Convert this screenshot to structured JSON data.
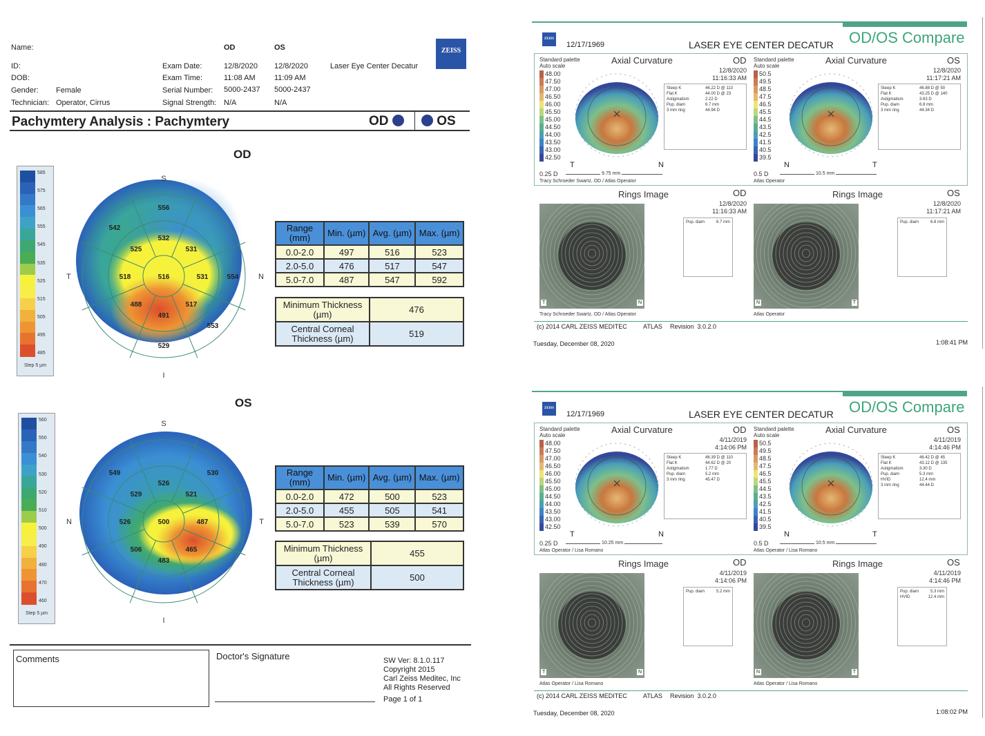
{
  "pachymetry_report": {
    "header": {
      "labels": {
        "name": "Name:",
        "id": "ID:",
        "dob": "DOB:",
        "gender": "Gender:",
        "technician": "Technician:"
      },
      "values": {
        "gender": "Female",
        "technician": "Operator, Cirrus"
      },
      "exam_labels": {
        "exam_date": "Exam Date:",
        "exam_time": "Exam Time:",
        "serial": "Serial Number:",
        "signal": "Signal Strength:"
      },
      "od": {
        "col": "OD",
        "exam_date": "12/8/2020",
        "exam_time": "11:08 AM",
        "serial": "5000-2437",
        "signal": "N/A"
      },
      "os": {
        "col": "OS",
        "exam_date": "12/8/2020",
        "exam_time": "11:09 AM",
        "serial": "5000-2437",
        "signal": "N/A"
      },
      "clinic": "Laser Eye Center Decatur",
      "logo": "ZEISS"
    },
    "title": "Pachymtery Analysis : Pachymtery",
    "title_od": "OD",
    "title_os": "OS",
    "od": {
      "heading": "OD",
      "orientation": {
        "top": "S",
        "bottom": "I",
        "left": "T",
        "right": "N"
      },
      "legend_ticks": [
        "585",
        "575",
        "565",
        "555",
        "545",
        "535",
        "525",
        "515",
        "505",
        "495",
        "485"
      ],
      "legend_step": "Step 5 µm",
      "sector_values": {
        "center": "516",
        "inner": [
          "532",
          "531",
          "531",
          "517",
          "491",
          "488",
          "518",
          "525"
        ],
        "outer": [
          "556",
          "554",
          "553",
          "529",
          "542"
        ]
      },
      "range_table": {
        "headers": [
          "Range (mm)",
          "Min. (µm)",
          "Avg. (µm)",
          "Max. (µm)"
        ],
        "rows": [
          [
            "0.0-2.0",
            "497",
            "516",
            "523"
          ],
          [
            "2.0-5.0",
            "476",
            "517",
            "547"
          ],
          [
            "5.0-7.0",
            "487",
            "547",
            "592"
          ]
        ]
      },
      "min_thickness_label": "Minimum Thickness (µm)",
      "min_thickness": "476",
      "cct_label": "Central Corneal Thickness (µm)",
      "cct": "519"
    },
    "os": {
      "heading": "OS",
      "orientation": {
        "top": "S",
        "bottom": "I",
        "left": "N",
        "right": "T"
      },
      "legend_ticks": [
        "560",
        "550",
        "540",
        "530",
        "520",
        "510",
        "500",
        "490",
        "480",
        "470",
        "460"
      ],
      "legend_step": "Step 5 µm",
      "sector_values": {
        "center": "500",
        "inner": [
          "526",
          "521",
          "487",
          "465",
          "483",
          "506",
          "526",
          "529"
        ],
        "outer": [
          "530",
          "549"
        ]
      },
      "range_table": {
        "headers": [
          "Range (mm)",
          "Min. (µm)",
          "Avg. (µm)",
          "Max. (µm)"
        ],
        "rows": [
          [
            "0.0-2.0",
            "472",
            "500",
            "523"
          ],
          [
            "2.0-5.0",
            "455",
            "505",
            "541"
          ],
          [
            "5.0-7.0",
            "523",
            "539",
            "570"
          ]
        ]
      },
      "min_thickness_label": "Minimum Thickness (µm)",
      "min_thickness": "455",
      "cct_label": "Central Corneal Thickness (µm)",
      "cct": "500"
    },
    "footer": {
      "comments": "Comments",
      "signature": "Doctor's Signature",
      "sw_ver": "SW Ver: 8.1.0.117",
      "copyright": "Copyright 2015",
      "company": "Carl Zeiss Meditec, Inc",
      "rights": "All Rights Reserved",
      "page": "Page 1 of 1"
    }
  },
  "atlas_reports": [
    {
      "logo": "ZEISS",
      "dob": "12/17/1969",
      "clinic": "LASER EYE CENTER DECATUR",
      "title": "OD/OS Compare",
      "od": {
        "palette": "Standard palette",
        "scale_mode": "Auto scale",
        "map_title": "Axial Curvature",
        "eye": "OD",
        "date": "12/8/2020",
        "time": "11:16:33 AM",
        "scale": [
          "48.00",
          "47.50",
          "47.00",
          "46.50",
          "46.00",
          "45.50",
          "45.00",
          "44.50",
          "44.00",
          "43.50",
          "43.00",
          "42.50"
        ],
        "step": "0.25 D",
        "diam": "9.75 mm",
        "left": "T",
        "right": "N",
        "operator": "Tracy Schroeder Swartz, OD / Atlas Operator",
        "kvalues": [
          [
            "Steep K",
            "46.22 D @ 113"
          ],
          [
            "Flat K",
            "44.00 D @ 23"
          ],
          [
            "Astigmatism",
            "2.22 D"
          ],
          [
            "Pup. diam",
            "6.7 mm"
          ],
          [
            "3 mm ring",
            "44.94 D"
          ]
        ],
        "rings_title": "Rings Image",
        "rings_info": [
          [
            "Pup. diam",
            "6.7 mm"
          ]
        ],
        "rings_left": "T",
        "rings_right": "N"
      },
      "os": {
        "palette": "Standard palette",
        "scale_mode": "Auto scale",
        "map_title": "Axial Curvature",
        "eye": "OS",
        "date": "12/8/2020",
        "time": "11:17:21 AM",
        "scale": [
          "50.5",
          "49.5",
          "48.5",
          "47.5",
          "46.5",
          "45.5",
          "44.5",
          "43.5",
          "42.5",
          "41.5",
          "40.5",
          "39.5"
        ],
        "step": "0.5 D",
        "diam": "10.5 mm",
        "left": "N",
        "right": "T",
        "operator": "Atlas Operator",
        "kvalues": [
          [
            "Steep K",
            "46.88 D @ 50"
          ],
          [
            "Flat K",
            "43.25 D @ 140"
          ],
          [
            "Astigmatism",
            "3.63 D"
          ],
          [
            "Pup. diam",
            "6.8 mm"
          ],
          [
            "3 mm ring",
            "44.34 D"
          ]
        ],
        "rings_title": "Rings Image",
        "rings_info": [
          [
            "Pup. diam",
            "6.8 mm"
          ]
        ],
        "rings_left": "N",
        "rings_right": "T"
      },
      "rings_operator_od": "Tracy Schroeder Swartz, OD / Atlas Operator",
      "rings_operator_os": "Atlas Operator",
      "copyright": "(c) 2014 CARL ZEISS MEDITEC",
      "product": "ATLAS",
      "revision": "Revision  3.0.2.0",
      "print_date": "Tuesday, December 08, 2020",
      "print_time": "1:08:41 PM"
    },
    {
      "logo": "ZEISS",
      "dob": "12/17/1969",
      "clinic": "LASER EYE CENTER DECATUR",
      "title": "OD/OS Compare",
      "od": {
        "palette": "Standard palette",
        "scale_mode": "Auto scale",
        "map_title": "Axial Curvature",
        "eye": "OD",
        "date": "4/11/2019",
        "time": "4:14:06 PM",
        "scale": [
          "48.00",
          "47.50",
          "47.00",
          "46.50",
          "46.00",
          "45.50",
          "45.00",
          "44.50",
          "44.00",
          "43.50",
          "43.00",
          "42.50"
        ],
        "step": "0.25 D",
        "diam": "10.25 mm",
        "left": "T",
        "right": "N",
        "operator": "Atlas Operator / Lisa Romano",
        "kvalues": [
          [
            "Steep K",
            "46.39 D @ 110"
          ],
          [
            "Flat K",
            "44.62 D @ 20"
          ],
          [
            "Astigmatism",
            "1.77 D"
          ],
          [
            "Pup. diam",
            "5.2 mm"
          ],
          [
            "3 mm ring",
            "45.47 D"
          ]
        ],
        "rings_title": "Rings Image",
        "rings_info": [
          [
            "Pup. diam",
            "5.2 mm"
          ]
        ],
        "rings_left": "T",
        "rings_right": "N"
      },
      "os": {
        "palette": "Standard palette",
        "scale_mode": "Auto scale",
        "map_title": "Axial Curvature",
        "eye": "OS",
        "date": "4/11/2019",
        "time": "4:14:46 PM",
        "scale": [
          "50.5",
          "49.5",
          "48.5",
          "47.5",
          "46.5",
          "45.5",
          "44.5",
          "43.5",
          "42.5",
          "41.5",
          "40.5",
          "39.5"
        ],
        "step": "0.5 D",
        "diam": "10.5 mm",
        "left": "N",
        "right": "T",
        "operator": "Atlas Operator / Lisa Romano",
        "kvalues": [
          [
            "Steep K",
            "46.42 D @ 45"
          ],
          [
            "Flat K",
            "43.12 D @ 135"
          ],
          [
            "Astigmatism",
            "3.30 D"
          ],
          [
            "Pup. diam",
            "5.3 mm"
          ],
          [
            "HVID",
            "12.4 mm"
          ],
          [
            "3 mm ring",
            "44.44 D"
          ]
        ],
        "rings_title": "Rings Image",
        "rings_info": [
          [
            "Pup. diam",
            "5.3 mm"
          ],
          [
            "HVID",
            "12.4 mm"
          ]
        ],
        "rings_left": "N",
        "rings_right": "T"
      },
      "rings_operator_od": "Atlas Operator / Lisa Romano",
      "rings_operator_os": "Atlas Operator / Lisa Romano",
      "copyright": "(c) 2014 CARL ZEISS MEDITEC",
      "product": "ATLAS",
      "revision": "Revision  3.0.2.0",
      "print_date": "Tuesday, December 08, 2020",
      "print_time": "1:08:02 PM"
    }
  ],
  "colors": {
    "zeiss_blue": "#2a55a6",
    "atlas_green": "#3da57a",
    "table_header": "#4a90d9",
    "eye_dot": "#2b3f8c"
  }
}
